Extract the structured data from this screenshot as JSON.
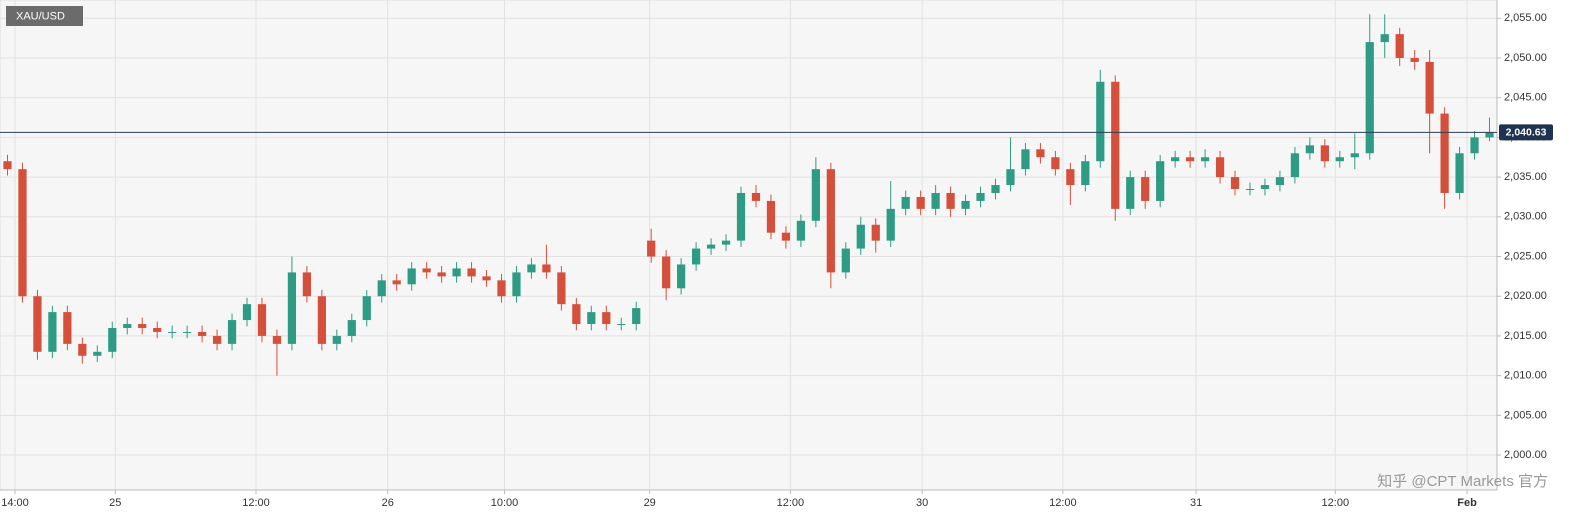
{
  "chart_data": {
    "type": "candlestick",
    "symbol": "XAU/USD",
    "watermark": "知乎 @CPT Markets 官方",
    "up_color": "#2e9c85",
    "down_color": "#d4503b",
    "grid": true,
    "xlim": [
      0,
      100
    ],
    "xticks": [
      {
        "value": 1,
        "label": "14:00"
      },
      {
        "value": 7.7,
        "label": "25"
      },
      {
        "value": 17.1,
        "label": "12:00"
      },
      {
        "value": 25.9,
        "label": "26"
      },
      {
        "value": 33.7,
        "label": "10:00"
      },
      {
        "value": 43.4,
        "label": "29"
      },
      {
        "value": 52.8,
        "label": "12:00"
      },
      {
        "value": 61.6,
        "label": "30"
      },
      {
        "value": 71,
        "label": "12:00"
      },
      {
        "value": 79.9,
        "label": "31"
      },
      {
        "value": 89.2,
        "label": "12:00"
      },
      {
        "value": 98,
        "label": "Feb"
      }
    ],
    "ylim": [
      1995.6,
      2057.3
    ],
    "yticks": [
      {
        "value": 2000,
        "label": "2,000.00"
      },
      {
        "value": 2005,
        "label": "2,005.00"
      },
      {
        "value": 2010,
        "label": "2,010.00"
      },
      {
        "value": 2015,
        "label": "2,015.00"
      },
      {
        "value": 2020,
        "label": "2,020.00"
      },
      {
        "value": 2025,
        "label": "2,025.00"
      },
      {
        "value": 2030,
        "label": "2,030.00"
      },
      {
        "value": 2035,
        "label": "2,035.00"
      },
      {
        "value": 2040,
        "label": "2,040.00"
      },
      {
        "value": 2045,
        "label": "2,045.00"
      },
      {
        "value": 2050,
        "label": "2,050.00"
      },
      {
        "value": 2055,
        "label": "2,055.00"
      }
    ],
    "last_price": {
      "value": 2040.63,
      "label": "2,040.63"
    },
    "open": [
      2037,
      2036,
      2020,
      2013,
      2018,
      2014,
      2012.5,
      2013,
      2016,
      2016.5,
      2016,
      2015.5,
      2015.5,
      2015.5,
      2015,
      2014,
      2017,
      2019,
      2015,
      2014,
      2023,
      2020,
      2014,
      2015,
      2017,
      2020,
      2022,
      2021.5,
      2023.5,
      2023,
      2022.5,
      2023.5,
      2022.5,
      2022,
      2020,
      2023,
      2024,
      2023,
      2019,
      2016.5,
      2018,
      2016.5,
      2016.5,
      2027,
      2025,
      2021,
      2024,
      2026,
      2026.5,
      2027,
      2033,
      2032,
      2028,
      2027,
      2029.5,
      2036,
      2023,
      2026,
      2029,
      2027,
      2031,
      2032.5,
      2031,
      2033,
      2031,
      2032,
      2033,
      2034,
      2036,
      2038.5,
      2037.5,
      2036,
      2034,
      2037,
      2047,
      2031,
      2035,
      2032,
      2037,
      2037.5,
      2037,
      2037.5,
      2035,
      2033.5,
      2033.5,
      2034,
      2035,
      2038,
      2039,
      2037,
      2037.5,
      2038,
      2052,
      2053,
      2050,
      2049.5,
      2043,
      2033,
      2038,
      2040
    ],
    "high": [
      2037.8,
      2036.8,
      2020.8,
      2018.8,
      2018.8,
      2014.8,
      2013.8,
      2016.8,
      2017.3,
      2017.3,
      2016.8,
      2016.3,
      2016.3,
      2016.3,
      2015.8,
      2017.8,
      2019.8,
      2019.8,
      2015.8,
      2025,
      2023.8,
      2020.8,
      2015.8,
      2017.8,
      2020.8,
      2022.8,
      2022.8,
      2024.3,
      2024.3,
      2023.8,
      2024.3,
      2024.3,
      2023.3,
      2022.8,
      2023.8,
      2024.8,
      2026.5,
      2023.8,
      2019.8,
      2018.8,
      2018.8,
      2017.3,
      2019.3,
      2028.5,
      2025.8,
      2024.8,
      2026.8,
      2027.3,
      2027.8,
      2033.8,
      2034,
      2032.8,
      2028.8,
      2030.3,
      2037.5,
      2036.8,
      2026.8,
      2030,
      2029.8,
      2034.5,
      2033.3,
      2033.3,
      2034,
      2033.8,
      2032.8,
      2033.8,
      2034.8,
      2040,
      2039.3,
      2039.3,
      2038.3,
      2036.8,
      2037.8,
      2048.5,
      2047.8,
      2035.8,
      2035.8,
      2037.8,
      2038.3,
      2038.3,
      2038.5,
      2038.3,
      2035.8,
      2034.3,
      2034.8,
      2035.8,
      2038.8,
      2040,
      2039.8,
      2038.3,
      2040.5,
      2055.5,
      2055.5,
      2053.8,
      2051,
      2051,
      2043.8,
      2038.8,
      2040.8,
      2042.5
    ],
    "low": [
      2035.2,
      2019.2,
      2012,
      2012.2,
      2013.2,
      2011.5,
      2011.7,
      2012.2,
      2015.2,
      2015.2,
      2014.7,
      2014.7,
      2014.7,
      2014.2,
      2013.2,
      2013.2,
      2016.2,
      2014.2,
      2010,
      2013.2,
      2019.2,
      2013.2,
      2013.2,
      2014.2,
      2016.2,
      2019.2,
      2020.7,
      2020.7,
      2022.2,
      2021.7,
      2021.7,
      2021.7,
      2021.2,
      2019.2,
      2019.2,
      2022.2,
      2022.2,
      2018.2,
      2015.7,
      2015.7,
      2015.7,
      2015.7,
      2015.7,
      2024.2,
      2019.5,
      2020.2,
      2023.2,
      2025.2,
      2025.7,
      2026.2,
      2031.2,
      2027.2,
      2026,
      2026.2,
      2028.7,
      2021,
      2022.2,
      2025.2,
      2025.5,
      2026.2,
      2030.2,
      2030.2,
      2030.2,
      2030,
      2030.2,
      2031.2,
      2032.2,
      2033.2,
      2035.2,
      2036.7,
      2035.2,
      2031.5,
      2033.2,
      2036.2,
      2029.5,
      2030.2,
      2031,
      2031.2,
      2036.2,
      2036.2,
      2036.2,
      2034.2,
      2032.7,
      2032.7,
      2032.7,
      2033.2,
      2034.2,
      2037.2,
      2036.2,
      2036.2,
      2036,
      2037.2,
      2050,
      2049,
      2048.5,
      2038,
      2031,
      2032.2,
      2037.2,
      2039.5
    ],
    "close": [
      2036,
      2020,
      2013,
      2018,
      2014,
      2012.5,
      2013,
      2016,
      2016.5,
      2016,
      2015.5,
      2015.5,
      2015.5,
      2015,
      2014,
      2017,
      2019,
      2015,
      2014,
      2023,
      2020,
      2014,
      2015,
      2017,
      2020,
      2022,
      2021.5,
      2023.5,
      2023,
      2022.5,
      2023.5,
      2022.5,
      2022,
      2020,
      2023,
      2024,
      2023,
      2019,
      2016.5,
      2018,
      2016.5,
      2016.5,
      2018.5,
      2025,
      2021,
      2024,
      2026,
      2026.5,
      2027,
      2033,
      2032,
      2028,
      2027,
      2029.5,
      2036,
      2023,
      2026,
      2029,
      2027,
      2031,
      2032.5,
      2031,
      2033,
      2031,
      2032,
      2033,
      2034,
      2036,
      2038.5,
      2037.5,
      2036,
      2034,
      2037,
      2047,
      2031,
      2035,
      2032,
      2037,
      2037.5,
      2037,
      2037.5,
      2035,
      2033.5,
      2033.5,
      2034,
      2035,
      2038,
      2039,
      2037,
      2037.5,
      2038,
      2052,
      2053,
      2050,
      2049.5,
      2043,
      2033,
      2038,
      2040,
      2040.6
    ]
  }
}
